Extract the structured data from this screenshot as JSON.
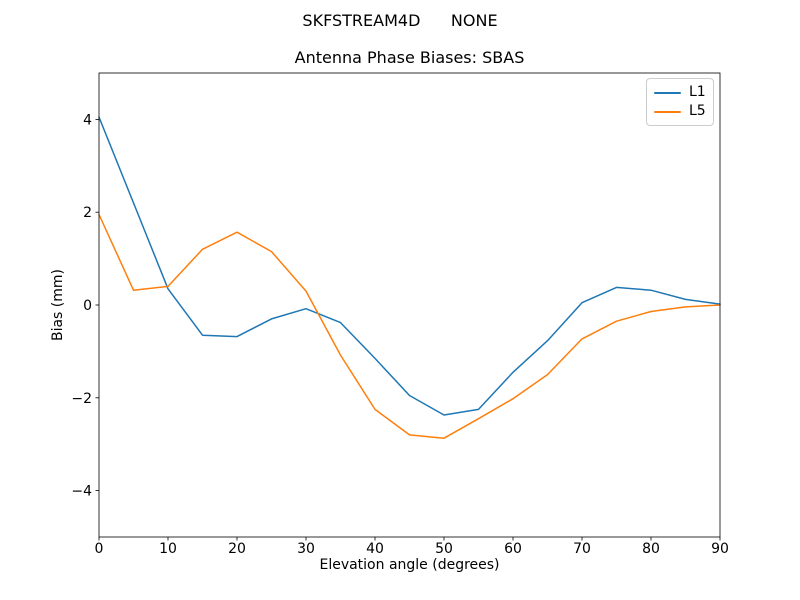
{
  "figure": {
    "suptitle": "SKFSTREAM4D      NONE",
    "title": "Antenna Phase Biases: SBAS",
    "xlabel": "Elevation angle (degrees)",
    "ylabel": "Bias (mm)"
  },
  "legend": {
    "position": "upper right",
    "entries": [
      {
        "label": "L1",
        "color": "#1f77b4"
      },
      {
        "label": "L5",
        "color": "#ff7f0e"
      }
    ]
  },
  "chart_data": {
    "type": "line",
    "title": "Antenna Phase Biases: SBAS",
    "suptitle": "SKFSTREAM4D      NONE",
    "xlabel": "Elevation angle (degrees)",
    "ylabel": "Bias (mm)",
    "x": [
      0,
      5,
      10,
      15,
      20,
      25,
      30,
      35,
      40,
      45,
      50,
      55,
      60,
      65,
      70,
      75,
      80,
      85,
      90
    ],
    "series": [
      {
        "name": "L1",
        "color": "#1f77b4",
        "values": [
          4.05,
          2.2,
          0.35,
          -0.65,
          -0.68,
          -0.3,
          -0.08,
          -0.38,
          -1.15,
          -1.95,
          -2.37,
          -2.25,
          -1.45,
          -0.77,
          0.05,
          0.38,
          0.32,
          0.12,
          0.02
        ]
      },
      {
        "name": "L5",
        "color": "#ff7f0e",
        "values": [
          1.95,
          0.32,
          0.4,
          1.2,
          1.57,
          1.15,
          0.3,
          -1.08,
          -2.25,
          -2.8,
          -2.87,
          -2.45,
          -2.02,
          -1.5,
          -0.73,
          -0.35,
          -0.14,
          -0.04,
          0.0
        ]
      }
    ],
    "xlim": [
      0,
      90
    ],
    "ylim": [
      -5,
      5
    ],
    "xticks": [
      0,
      10,
      20,
      30,
      40,
      50,
      60,
      70,
      80,
      90
    ],
    "yticks": [
      -4,
      -2,
      0,
      2,
      4
    ],
    "grid": false,
    "legend_position": "upper right",
    "line_width": 1.5,
    "background": "#ffffff"
  }
}
